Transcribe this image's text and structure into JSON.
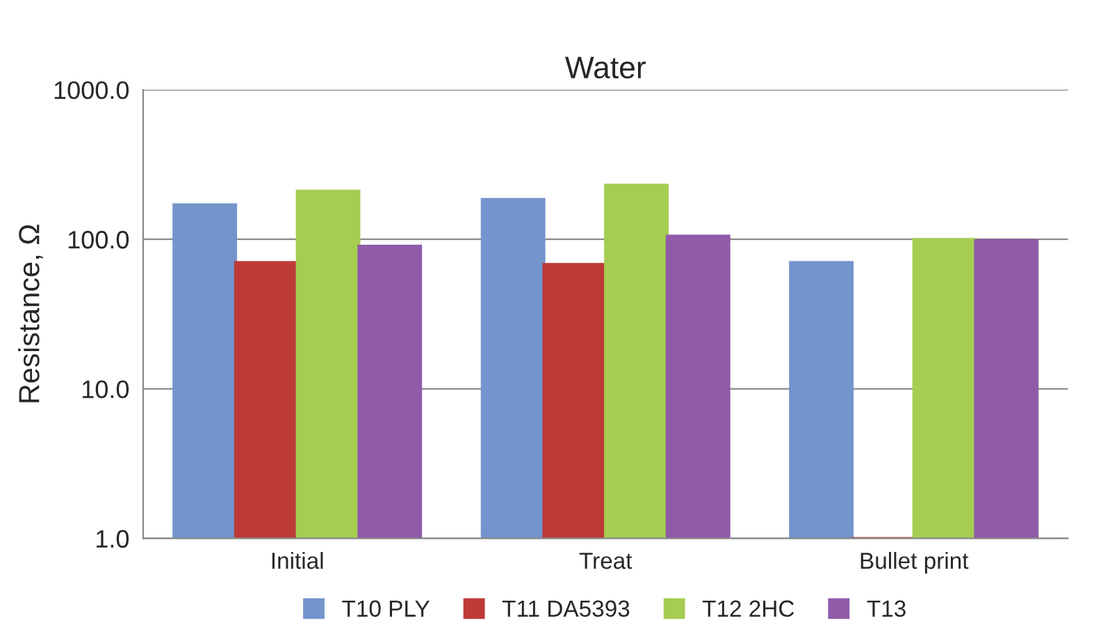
{
  "chart_data": {
    "type": "bar",
    "title": "Water",
    "ylabel": "Resistance, Ω",
    "categories": [
      "Initial",
      "Treat",
      "Bullet print"
    ],
    "series": [
      {
        "name": "T10 PLY",
        "color": "#7394cc",
        "values": [
          170,
          185,
          70
        ]
      },
      {
        "name": "T11 DA5393",
        "color": "#be3a37",
        "values": [
          70,
          68,
          1.0
        ]
      },
      {
        "name": "T12 2HC",
        "color": "#a5cd52",
        "values": [
          210,
          230,
          100
        ]
      },
      {
        "name": "T13",
        "color": "#8f5ba8",
        "values": [
          90,
          105,
          98
        ]
      }
    ],
    "log": true,
    "ylim": [
      1,
      1000
    ],
    "yticks": [
      {
        "value": 1,
        "label": "1.0"
      },
      {
        "value": 10,
        "label": "10.0"
      },
      {
        "value": 100,
        "label": "100.0"
      },
      {
        "value": 1000,
        "label": "1000.0"
      }
    ],
    "grid": "y",
    "legend": "bottom"
  }
}
